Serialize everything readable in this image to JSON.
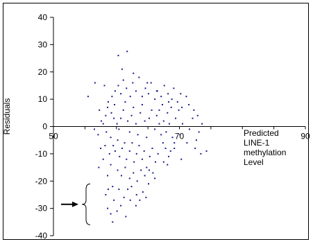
{
  "chart_data": {
    "type": "scatter",
    "title": "",
    "ylabel": "Residuals",
    "xlabel_lines": [
      "Predicted",
      "LINE-1",
      "methylation",
      "Level"
    ],
    "xlim": [
      50,
      90
    ],
    "ylim": [
      -40,
      40
    ],
    "x_ticks": [
      "50",
      "70",
      "90"
    ],
    "y_ticks": [
      "40",
      "30",
      "20",
      "10",
      "0",
      "-10",
      "-20",
      "-30",
      "-40"
    ],
    "grid": false,
    "point_color": "#1a1a8c",
    "annotation": {
      "type": "bracket-arrow",
      "y_range": [
        -21,
        -36
      ]
    },
    "series": [
      {
        "points": [
          [
            55.5,
            11
          ],
          [
            56.6,
            16
          ],
          [
            58.1,
            15
          ],
          [
            58.7,
            9
          ],
          [
            59.6,
            3
          ],
          [
            60.3,
            26
          ],
          [
            61.7,
            27.5
          ],
          [
            60.9,
            21
          ],
          [
            62.7,
            19.5
          ],
          [
            64.9,
            16
          ],
          [
            57.3,
            6
          ],
          [
            57.6,
            2
          ],
          [
            58.4,
            -2
          ],
          [
            58.2,
            -7
          ],
          [
            58.9,
            -10
          ],
          [
            59.1,
            -14
          ],
          [
            58.6,
            -18
          ],
          [
            59.4,
            -22
          ],
          [
            58.7,
            -23
          ],
          [
            58.6,
            -30
          ],
          [
            59.1,
            -32
          ],
          [
            60.1,
            -31
          ],
          [
            60.7,
            -29
          ],
          [
            61.8,
            -23
          ],
          [
            62.2,
            -27
          ],
          [
            63.7,
            -27
          ],
          [
            64.2,
            -24
          ],
          [
            61.5,
            -33
          ],
          [
            59.4,
            -35
          ],
          [
            63.2,
            -25
          ],
          [
            65.2,
            -16
          ],
          [
            66.1,
            -19
          ],
          [
            67.5,
            -13
          ],
          [
            68.1,
            -14
          ],
          [
            68.6,
            -9
          ],
          [
            69.2,
            -8
          ],
          [
            70.1,
            -3
          ],
          [
            71.2,
            -6
          ],
          [
            72.1,
            3
          ],
          [
            72.3,
            6
          ],
          [
            73.1,
            -2
          ],
          [
            72.5,
            -8
          ],
          [
            73.4,
            -10
          ],
          [
            70.2,
            12
          ],
          [
            69.1,
            14
          ],
          [
            68.3,
            9
          ],
          [
            66.4,
            13
          ],
          [
            70.4,
            7
          ],
          [
            71.1,
            11
          ],
          [
            74.3,
            -9
          ],
          [
            56.5,
            -1
          ],
          [
            57.1,
            -3
          ],
          [
            57.9,
            1
          ],
          [
            58.3,
            4
          ],
          [
            58.6,
            7
          ],
          [
            59.2,
            5
          ],
          [
            59.7,
            8
          ],
          [
            60.1,
            1
          ],
          [
            60.4,
            -1
          ],
          [
            60.7,
            3
          ],
          [
            61.1,
            6
          ],
          [
            61.4,
            9
          ],
          [
            61.8,
            2
          ],
          [
            62.1,
            -2
          ],
          [
            62.4,
            4
          ],
          [
            62.7,
            7
          ],
          [
            63.1,
            1
          ],
          [
            63.4,
            -3
          ],
          [
            63.8,
            5
          ],
          [
            64.1,
            8
          ],
          [
            64.5,
            2
          ],
          [
            64.8,
            -4
          ],
          [
            65.2,
            3
          ],
          [
            65.6,
            6
          ],
          [
            66.1,
            -1
          ],
          [
            66.4,
            4
          ],
          [
            66.8,
            1
          ],
          [
            67.1,
            -3
          ],
          [
            67.5,
            2
          ],
          [
            68.1,
            5
          ],
          [
            59.1,
            -4
          ],
          [
            59.5,
            -7
          ],
          [
            59.8,
            -9
          ],
          [
            60.2,
            -5
          ],
          [
            60.5,
            -11
          ],
          [
            60.9,
            -8
          ],
          [
            61.3,
            -6
          ],
          [
            61.6,
            -12
          ],
          [
            62.1,
            -9
          ],
          [
            62.5,
            -6
          ],
          [
            62.8,
            -13
          ],
          [
            63.2,
            -10
          ],
          [
            63.6,
            -7
          ],
          [
            64.1,
            -12
          ],
          [
            64.4,
            -9
          ],
          [
            64.8,
            -15
          ],
          [
            65.3,
            -11
          ],
          [
            65.7,
            -8
          ],
          [
            66.2,
            -13
          ],
          [
            66.6,
            -10
          ],
          [
            59.3,
            11
          ],
          [
            59.8,
            13
          ],
          [
            60.3,
            15
          ],
          [
            60.7,
            12
          ],
          [
            61.1,
            17
          ],
          [
            61.6,
            14
          ],
          [
            62.2,
            11
          ],
          [
            62.6,
            16
          ],
          [
            63.1,
            13
          ],
          [
            63.6,
            18
          ],
          [
            64.1,
            11
          ],
          [
            64.6,
            14
          ],
          [
            65.1,
            12
          ],
          [
            65.5,
            16
          ],
          [
            66.1,
            10
          ],
          [
            66.5,
            13
          ],
          [
            67.1,
            11
          ],
          [
            67.6,
            15
          ],
          [
            68.2,
            12
          ],
          [
            68.8,
            10
          ],
          [
            60.2,
            -16
          ],
          [
            60.8,
            -18
          ],
          [
            61.4,
            -15
          ],
          [
            62.1,
            -19
          ],
          [
            62.7,
            -17
          ],
          [
            63.3,
            -20
          ],
          [
            63.9,
            -16
          ],
          [
            64.5,
            -18
          ],
          [
            65.1,
            -21
          ],
          [
            65.8,
            -17
          ],
          [
            58.3,
            -25
          ],
          [
            59.6,
            -27
          ],
          [
            60.4,
            -23
          ],
          [
            61.2,
            -26
          ],
          [
            62.4,
            -22
          ],
          [
            63.1,
            -29
          ],
          [
            64.7,
            -26
          ],
          [
            57.9,
            -12
          ],
          [
            57.5,
            -8
          ],
          [
            57.2,
            -15
          ],
          [
            67.4,
            -6
          ],
          [
            67.9,
            -2
          ],
          [
            68.4,
            1
          ],
          [
            68.9,
            -4
          ],
          [
            69.4,
            3
          ],
          [
            69.9,
            6
          ],
          [
            70.5,
            1
          ],
          [
            71.6,
            -1
          ],
          [
            72.9,
            4
          ],
          [
            73.6,
            1
          ],
          [
            66.8,
            6
          ],
          [
            67.3,
            8
          ],
          [
            67.8,
            -8
          ],
          [
            68.3,
            -11
          ],
          [
            68.7,
            7
          ],
          [
            69.2,
            -6
          ],
          [
            69.7,
            9
          ],
          [
            70.3,
            -12
          ],
          [
            71.5,
            8
          ],
          [
            72.7,
            -5
          ]
        ]
      }
    ]
  }
}
